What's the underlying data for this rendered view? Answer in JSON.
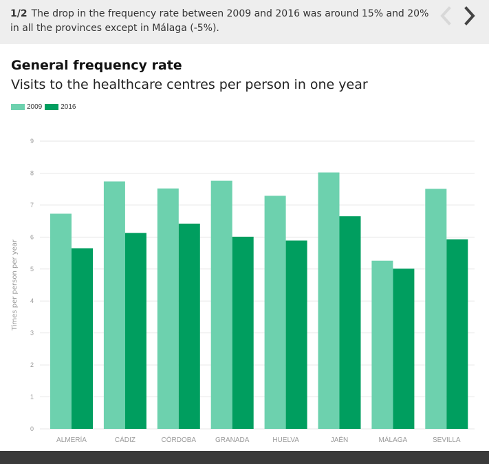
{
  "slide": {
    "index_label": "1/2",
    "caption": "The drop in the frequency rate between 2009 and 2016 was around 15% and 20% in all the provinces except in Málaga (-5%).",
    "prev_icon": "chevron-left-icon",
    "next_icon": "chevron-right-icon"
  },
  "colors": {
    "series_2009": "#6dd1ae",
    "series_2016": "#009e5f",
    "grid": "#e6e6e6",
    "tick_text": "#999999",
    "nav_disabled": "#d8d8d8",
    "nav_active": "#444444"
  },
  "chart_data": {
    "type": "bar",
    "title": "General frequency rate",
    "subtitle": "Visits to the healthcare centres per person in one year",
    "xlabel": "",
    "ylabel": "Times per person per year",
    "ylim": [
      0,
      9
    ],
    "yticks": [
      "0",
      "1",
      "2",
      "3",
      "4",
      "5",
      "6",
      "7",
      "8",
      "9"
    ],
    "grid": true,
    "legend_position": "top-left",
    "categories": [
      "ALMERÍA",
      "CÁDIZ",
      "CÓRDOBA",
      "GRANADA",
      "HUELVA",
      "JAÉN",
      "MÁLAGA",
      "SEVILLA"
    ],
    "series": [
      {
        "name": "2009",
        "values": [
          6.73,
          7.74,
          7.52,
          7.76,
          7.29,
          8.02,
          5.26,
          7.51
        ]
      },
      {
        "name": "2016",
        "values": [
          5.65,
          6.13,
          6.42,
          6.01,
          5.89,
          6.65,
          5.01,
          5.93
        ]
      }
    ]
  }
}
